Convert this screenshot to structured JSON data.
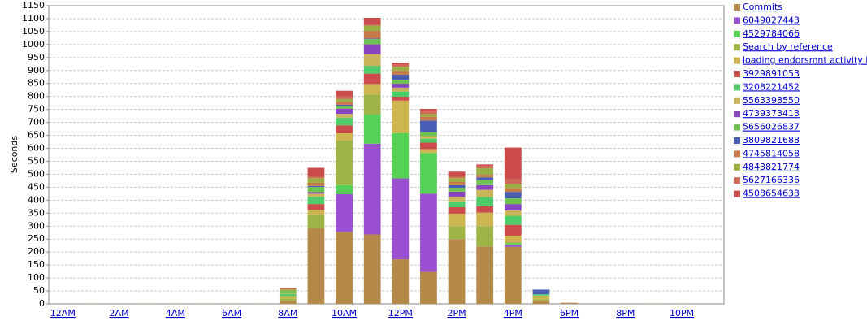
{
  "chart_data": {
    "type": "stacked-bar",
    "y_label": "Seconds",
    "categories": [
      "12AM",
      null,
      "2AM",
      null,
      "4AM",
      null,
      "6AM",
      null,
      "8AM",
      null,
      "10AM",
      null,
      "12PM",
      null,
      "2PM",
      null,
      "4PM",
      null,
      "6PM",
      null,
      "8PM",
      null,
      "10PM",
      null
    ],
    "ylim": [
      0,
      1150
    ],
    "yticks": [
      0,
      50,
      100,
      150,
      200,
      250,
      300,
      350,
      400,
      450,
      500,
      550,
      600,
      650,
      700,
      750,
      800,
      850,
      900,
      950,
      1000,
      1050,
      1100,
      1150
    ],
    "grid": true,
    "legend": "right",
    "series": [
      {
        "name": "Commits",
        "color": "#b5894a",
        "values": [
          0,
          1,
          0,
          1,
          1,
          1,
          1,
          1,
          12,
          293,
          278,
          268,
          172,
          123,
          250,
          222,
          220,
          12,
          4,
          0,
          0,
          1,
          1,
          0
        ]
      },
      {
        "name": "6049027443",
        "color": "#9b4fd1",
        "values": [
          0,
          0,
          0,
          0,
          0,
          0,
          0,
          0,
          0,
          0,
          145,
          350,
          312,
          302,
          0,
          0,
          8,
          0,
          0,
          0,
          0,
          0,
          0,
          0
        ]
      },
      {
        "name": "4529784066",
        "color": "#55d155",
        "values": [
          0,
          0,
          0,
          0,
          0,
          0,
          0,
          0,
          0,
          0,
          35,
          112,
          175,
          157,
          0,
          0,
          5,
          0,
          0,
          0,
          0,
          0,
          0,
          0
        ]
      },
      {
        "name": "Search by reference",
        "color": "#9fb447",
        "values": [
          0,
          0,
          0,
          0,
          0,
          0,
          0,
          0,
          8,
          52,
          172,
          78,
          0,
          0,
          50,
          78,
          5,
          5,
          0,
          0,
          0,
          0,
          0,
          0
        ]
      },
      {
        "name": "loading endorsmnt activity log",
        "color": "#cdb550",
        "values": [
          0,
          0,
          0,
          0,
          0,
          0,
          0,
          0,
          10,
          18,
          28,
          40,
          125,
          15,
          48,
          52,
          25,
          15,
          0,
          0,
          0,
          0,
          0,
          0
        ]
      },
      {
        "name": "3929891053",
        "color": "#cc4c4c",
        "values": [
          0,
          0,
          0,
          0,
          0,
          0,
          0,
          0,
          0,
          22,
          30,
          40,
          15,
          25,
          25,
          25,
          42,
          0,
          0,
          0,
          0,
          0,
          0,
          0
        ]
      },
      {
        "name": "3208221452",
        "color": "#4fcb6a",
        "values": [
          0,
          0,
          0,
          0,
          0,
          0,
          0,
          0,
          8,
          28,
          30,
          30,
          20,
          15,
          22,
          35,
          35,
          5,
          0,
          0,
          0,
          0,
          0,
          0
        ]
      },
      {
        "name": "5563398550",
        "color": "#c8b55a",
        "values": [
          0,
          0,
          0,
          0,
          0,
          0,
          0,
          0,
          6,
          12,
          15,
          45,
          15,
          10,
          18,
          28,
          20,
          0,
          0,
          0,
          0,
          0,
          0,
          0
        ]
      },
      {
        "name": "4739373413",
        "color": "#8a44c2",
        "values": [
          0,
          0,
          0,
          0,
          0,
          0,
          0,
          0,
          0,
          6,
          20,
          38,
          15,
          0,
          20,
          18,
          25,
          0,
          0,
          0,
          0,
          0,
          0,
          0
        ]
      },
      {
        "name": "5656026837",
        "color": "#6ec24f",
        "values": [
          0,
          0,
          0,
          0,
          0,
          0,
          0,
          0,
          6,
          20,
          10,
          20,
          15,
          15,
          15,
          20,
          22,
          0,
          0,
          0,
          0,
          0,
          0,
          0
        ]
      },
      {
        "name": "3809821688",
        "color": "#4a5db5",
        "values": [
          0,
          0,
          0,
          0,
          0,
          0,
          0,
          0,
          0,
          4,
          5,
          2,
          20,
          45,
          10,
          10,
          25,
          18,
          0,
          0,
          0,
          0,
          0,
          0
        ]
      },
      {
        "name": "4745814058",
        "color": "#c8784a",
        "values": [
          0,
          0,
          0,
          0,
          0,
          0,
          0,
          0,
          0,
          12,
          12,
          30,
          15,
          15,
          12,
          10,
          15,
          0,
          0,
          0,
          0,
          0,
          0,
          0
        ]
      },
      {
        "name": "4843821774",
        "color": "#9aae44",
        "values": [
          0,
          0,
          0,
          0,
          0,
          0,
          0,
          0,
          6,
          18,
          10,
          20,
          15,
          10,
          15,
          25,
          15,
          0,
          0,
          0,
          0,
          0,
          0,
          0
        ]
      },
      {
        "name": "5627166336",
        "color": "#cc6a55",
        "values": [
          0,
          0,
          0,
          0,
          0,
          0,
          0,
          0,
          6,
          10,
          10,
          5,
          8,
          10,
          10,
          10,
          18,
          0,
          0,
          0,
          0,
          0,
          0,
          0
        ]
      },
      {
        "name": "4508654633",
        "color": "#cc4c4c",
        "values": [
          0,
          0,
          0,
          0,
          0,
          0,
          0,
          0,
          0,
          30,
          22,
          25,
          8,
          10,
          15,
          5,
          123,
          0,
          0,
          0,
          0,
          0,
          0,
          0
        ]
      }
    ]
  }
}
